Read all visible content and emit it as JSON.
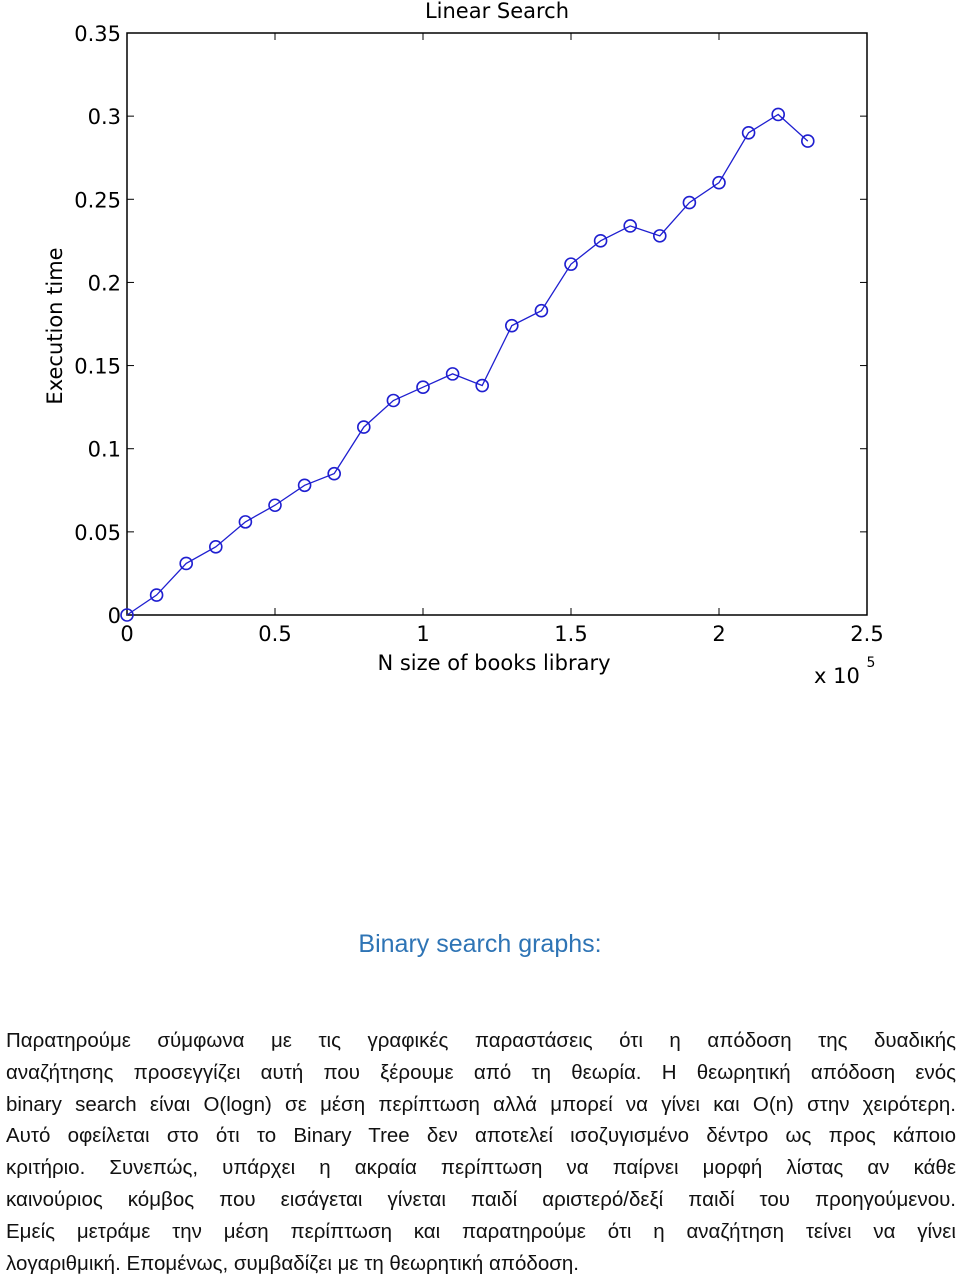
{
  "chart_data": {
    "type": "line",
    "title": "Linear Search",
    "xlabel": "N size of books library",
    "ylabel": "Execution time",
    "x_exponent_label": "x 10",
    "x_exponent_power": "5",
    "xlim": [
      0,
      2.5
    ],
    "ylim": [
      0,
      0.35
    ],
    "x_ticks": [
      "0",
      "0.5",
      "1",
      "1.5",
      "2",
      "2.5"
    ],
    "y_ticks": [
      "0",
      "0.05",
      "0.1",
      "0.15",
      "0.2",
      "0.25",
      "0.3",
      "0.35"
    ],
    "grid": false,
    "marker": "circle",
    "line_color": "#1f1fd0",
    "x": [
      0,
      0.1,
      0.2,
      0.3,
      0.4,
      0.5,
      0.6,
      0.7,
      0.8,
      0.9,
      1.0,
      1.1,
      1.2,
      1.3,
      1.4,
      1.5,
      1.6,
      1.7,
      1.8,
      1.9,
      2.0,
      2.1,
      2.2,
      2.3
    ],
    "values": [
      0.0,
      0.012,
      0.031,
      0.041,
      0.056,
      0.066,
      0.078,
      0.085,
      0.113,
      0.129,
      0.137,
      0.145,
      0.138,
      0.174,
      0.183,
      0.211,
      0.225,
      0.234,
      0.228,
      0.248,
      0.26,
      0.29,
      0.301,
      0.285
    ]
  },
  "section": {
    "heading": "Binary search graphs:"
  },
  "paragraph": {
    "lines": [
      "Παρατηρούμε σύμφωνα με τις γραφικές παραστάσεις ότι η απόδοση της δυαδικής",
      "αναζήτησης προσεγγίζει αυτή που ξέρουμε από τη θεωρία. Η θεωρητική απόδοση ενός",
      "binary search είναι O(logn) σε μέση περίπτωση αλλά μπορεί να γίνει και O(n) στην χειρότερη.",
      "Αυτό οφείλεται στο ότι το Binary Tree δεν αποτελεί ισοζυγισμένο δέντρο ως προς κάποιο",
      "κριτήριο. Συνεπώς, υπάρχει η ακραία περίπτωση να παίρνει μορφή λίστας αν κάθε",
      "καινούριος κόμβος που εισάγεται γίνεται παιδί αριστερό/δεξί παιδί του προηγούμενου.",
      "Εμείς μετράμε την μέση περίπτωση και παρατηρούμε ότι η αναζήτηση τείνει να γίνει",
      "λογαριθμική. Επομένως, συμβαδίζει με τη θεωρητική απόδοση."
    ]
  }
}
